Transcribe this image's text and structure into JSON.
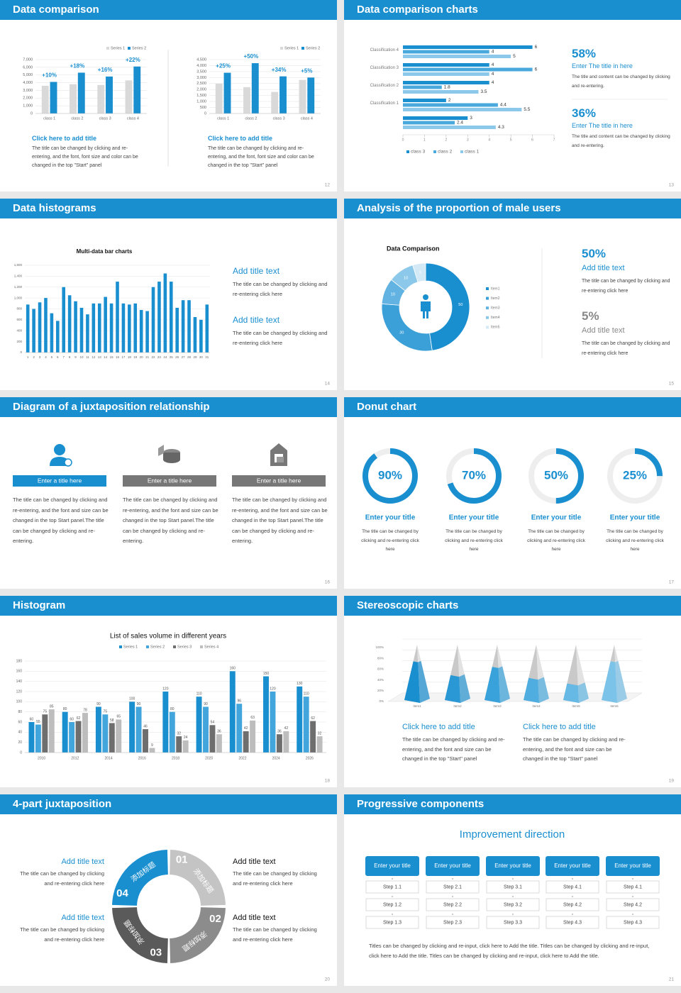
{
  "slides": [
    {
      "title": "Data comparison",
      "page": 12,
      "charts": [
        {
          "type": "bar",
          "categories": [
            "class 1",
            "class 2",
            "class 3",
            "class 4"
          ],
          "series": [
            {
              "name": "Series 1",
              "color": "#d9d9d9",
              "values": [
                3600,
                3800,
                3700,
                4300
              ]
            },
            {
              "name": "Series 2",
              "color": "#1a8fd0",
              "values": [
                4100,
                5300,
                4800,
                6100
              ]
            }
          ],
          "ylim": [
            0,
            7000
          ],
          "yticks": [
            0,
            {
              "value": 1000,
              "label": "1,000"
            },
            {
              "value": 2000,
              "label": "2,000"
            },
            {
              "value": 3000,
              "label": "3,000"
            },
            {
              "value": 4000,
              "label": "4,000"
            },
            {
              "value": 5000,
              "label": "5,000"
            },
            {
              "value": 6000,
              "label": "6,000"
            },
            {
              "value": 7000,
              "label": "7,000"
            }
          ],
          "annotations": [
            "+10%",
            "+18%",
            "+16%",
            "+22%"
          ]
        },
        {
          "type": "bar",
          "categories": [
            "class 1",
            "class 2",
            "class 3",
            "class 4"
          ],
          "series": [
            {
              "name": "Series 1",
              "color": "#d9d9d9",
              "values": [
                2500,
                2200,
                1800,
                2800
              ]
            },
            {
              "name": "Series 2",
              "color": "#1a8fd0",
              "values": [
                3400,
                4200,
                3100,
                3000
              ]
            }
          ],
          "ylim": [
            0,
            4500
          ],
          "yticks": [
            0,
            500,
            {
              "value": 1000,
              "label": "1,000"
            },
            {
              "value": 1500,
              "label": "1,500"
            },
            {
              "value": 2000,
              "label": "2,000"
            },
            {
              "value": 2500,
              "label": "2,500"
            },
            {
              "value": 3000,
              "label": "3,000"
            },
            {
              "value": 3500,
              "label": "3,500"
            },
            {
              "value": 4000,
              "label": "4,000"
            },
            {
              "value": 4500,
              "label": "4,500"
            }
          ],
          "annotations": [
            "+25%",
            "+50%",
            "+34%",
            "+5%"
          ]
        }
      ],
      "captions": [
        {
          "heading": "Click here to add title",
          "text": "The title can be changed by clicking and re-entering, and the font, font size and color can be changed in the top \"Start\" panel"
        },
        {
          "heading": "Click here to add title",
          "text": "The title can be changed by clicking and re-entering, and the font, font size and color can be changed in the top \"Start\" panel"
        }
      ]
    },
    {
      "title": "Data comparison charts",
      "page": 13,
      "chart": {
        "type": "hbar",
        "categories": [
          "Classification 4",
          "Classification 3",
          "Classification 2",
          "Classification 1",
          null
        ],
        "series": [
          {
            "name": "class 3",
            "color": "#1a8fd0",
            "values": [
              6,
              4,
              4,
              2,
              3
            ]
          },
          {
            "name": "class 2",
            "color": "#4aa9dc",
            "values": [
              4,
              6,
              1.8,
              4.4,
              2.4
            ]
          },
          {
            "name": "class 1",
            "color": "#8cc8ea",
            "values": [
              5,
              4,
              3.5,
              5.5,
              4.3
            ]
          }
        ],
        "xlim": [
          0,
          7
        ],
        "xticks": [
          0,
          1,
          2,
          3,
          4,
          5,
          6,
          7
        ]
      },
      "stats": [
        {
          "value": "58%",
          "heading": "Enter The title in here",
          "text": "The title and content can be changed by clicking and re-entering."
        },
        {
          "value": "36%",
          "heading": "Enter The title in here",
          "text": "The title and content can be changed by clicking and re-entering."
        }
      ]
    },
    {
      "title": "Data histograms",
      "page": 14,
      "chart": {
        "type": "bar",
        "title": "Multi-data bar charts",
        "color": "#1a8fd0",
        "categories": [
          1,
          2,
          3,
          4,
          5,
          6,
          7,
          8,
          9,
          10,
          11,
          12,
          13,
          14,
          15,
          16,
          17,
          18,
          19,
          20,
          21,
          22,
          23,
          24,
          25,
          26,
          27,
          28,
          29,
          30,
          31
        ],
        "values": [
          880,
          800,
          920,
          1000,
          720,
          580,
          1200,
          1050,
          940,
          820,
          700,
          900,
          900,
          1020,
          900,
          1300,
          900,
          880,
          900,
          780,
          760,
          1200,
          1300,
          1450,
          1300,
          820,
          960,
          960,
          650,
          600,
          880
        ],
        "ylim": [
          0,
          1600
        ],
        "yticks": [
          0,
          200,
          400,
          600,
          800,
          {
            "value": 1000,
            "label": "1,000"
          },
          {
            "value": 1200,
            "label": "1,200"
          },
          {
            "value": 1400,
            "label": "1,400"
          },
          {
            "value": 1600,
            "label": "1,600"
          }
        ]
      },
      "items": [
        {
          "heading": "Add title text",
          "text": "The title can be changed by clicking and re-entering click here"
        },
        {
          "heading": "Add title text",
          "text": "The title can be changed by clicking and re-entering click here"
        }
      ]
    },
    {
      "title": "Analysis of the proportion of male users",
      "page": 15,
      "chart": {
        "type": "donut",
        "title": "Data Comparison",
        "categories": [
          "Item1",
          "Item2",
          "Item3",
          "Item4",
          "Item5"
        ],
        "values": [
          50,
          30,
          10,
          10,
          5
        ],
        "colors": [
          "#1a8fd0",
          "#3b9fd8",
          "#62b3e1",
          "#8cc8ea",
          "#d3e9f6"
        ]
      },
      "stats": [
        {
          "value": "50%",
          "heading": "Add title text",
          "text": "The title can be changed by clicking and re-entering click here"
        },
        {
          "value": "5%",
          "heading": "Add title text",
          "text": "The title can be changed by clicking and re-entering click here"
        }
      ]
    },
    {
      "title": "Diagram of a juxtaposition relationship",
      "page": 16,
      "columns": [
        {
          "heading": "Enter a title here",
          "text": "The title can be changed by clicking and re-entering, and the font and size can be changed in the top Start panel.The title can be changed by clicking and re-entering."
        },
        {
          "heading": "Enter a title here",
          "text": "The title can be changed by clicking and re-entering, and the font and size can be changed in the top Start panel.The title can be changed by clicking and re-entering."
        },
        {
          "heading": "Enter a title here",
          "text": "The title can be changed by clicking and re-entering, and the font and size can be changed in the top Start panel.The title can be changed by clicking and re-entering."
        }
      ]
    },
    {
      "title": "Donut chart",
      "page": 17,
      "chart": {
        "type": "ring",
        "values": [
          90,
          70,
          50,
          25
        ],
        "value_labels": [
          "90%",
          "70%",
          "50%",
          "25%"
        ],
        "color": "#1a8fd0",
        "track_color": "#eeeeee"
      },
      "items": [
        {
          "heading": "Enter your title",
          "text": "The title can be changed by clicking and re-entering click here"
        },
        {
          "heading": "Enter your title",
          "text": "The title can be changed by clicking and re-entering click here"
        },
        {
          "heading": "Enter your title",
          "text": "The title can be changed by clicking and re-entering click here"
        },
        {
          "heading": "Enter your title",
          "text": "The title can be changed by clicking and re-entering click here"
        }
      ]
    },
    {
      "title": "Histogram",
      "page": 18,
      "chart": {
        "type": "bar",
        "title": "List of sales volume in different years",
        "categories": [
          2010,
          2012,
          2014,
          2016,
          2018,
          2020,
          2022,
          2024,
          2026
        ],
        "series": [
          {
            "name": "Series 1",
            "color": "#1a8fd0",
            "values": [
              60,
              80,
              90,
              100,
              120,
              110,
              160,
              150,
              130
            ]
          },
          {
            "name": "Series 2",
            "color": "#42a6dc",
            "values": [
              55,
              60,
              75,
              90,
              80,
              90,
              96,
              120,
              110
            ]
          },
          {
            "name": "Series 3",
            "color": "#6e6e6e",
            "values": [
              75,
              62,
              58,
              46,
              32,
              54,
              42,
              36,
              62
            ]
          },
          {
            "name": "Series 4",
            "color": "#bdbdbd",
            "values": [
              85,
              78,
              65,
              9,
              24,
              36,
              63,
              42,
              32
            ]
          }
        ],
        "ylim": [
          0,
          180
        ],
        "yticks": [
          0,
          20,
          40,
          60,
          80,
          100,
          120,
          140,
          160,
          180
        ]
      }
    },
    {
      "title": "Stereoscopic charts",
      "page": 19,
      "chart": {
        "type": "pyramid",
        "categories": [
          "Item1",
          "Item2",
          "Item3",
          "Item4",
          "Item5",
          "Item6"
        ],
        "values": [
          70,
          45,
          60,
          40,
          30,
          70
        ],
        "colors": [
          "#1a8fd0",
          "#2a98d4",
          "#3aa2da",
          "#4fade0",
          "#66b9e5",
          "#7cc3ea"
        ],
        "ylim": [
          0,
          100
        ],
        "yticks": [
          {
            "value": 0,
            "label": "0%"
          },
          {
            "value": 20,
            "label": "20%"
          },
          {
            "value": 40,
            "label": "40%"
          },
          {
            "value": 60,
            "label": "60%"
          },
          {
            "value": 80,
            "label": "80%"
          },
          {
            "value": 100,
            "label": "100%"
          }
        ]
      },
      "captions": [
        {
          "heading": "Click here to add title",
          "text": "The title can be changed by clicking and re-entering, and the font and size can be changed in the top \"Start\" panel"
        },
        {
          "heading": "Click here to add title",
          "text": "The title can be changed by clicking and re-entering, and the font and size can be changed in the top \"Start\" panel"
        }
      ]
    },
    {
      "title": "4-part juxtaposition",
      "page": 20,
      "parts": [
        {
          "number": "01",
          "label": "添加标题"
        },
        {
          "number": "02",
          "label": "添加标题"
        },
        {
          "number": "03",
          "label": "添加标题"
        },
        {
          "number": "04",
          "label": "添加标题"
        }
      ],
      "items": [
        {
          "heading": "Add title text",
          "text": "The title can be changed by clicking and re-entering click here"
        },
        {
          "heading": "Add title text",
          "text": "The title can be changed by clicking and re-entering click here"
        },
        {
          "heading": "Add title text",
          "text": "The title can be changed by clicking and re-entering click here"
        },
        {
          "heading": "Add title text",
          "text": "The title can be changed by clicking and re-entering click here"
        }
      ]
    },
    {
      "title": "Progressive components",
      "page": 21,
      "heading": "Improvement direction",
      "columns": [
        {
          "title": "Enter your title",
          "steps": [
            "Step 1.1",
            "Step 1.2",
            "Step 1.3"
          ]
        },
        {
          "title": "Enter your title",
          "steps": [
            "Step 2.1",
            "Step 2.2",
            "Step 2.3"
          ]
        },
        {
          "title": "Enter your title",
          "steps": [
            "Step 3.1",
            "Step 3.2",
            "Step 3.3"
          ]
        },
        {
          "title": "Enter your title",
          "steps": [
            "Step 4.1",
            "Step 4.2",
            "Step 4.3"
          ]
        },
        {
          "title": "Enter your title",
          "steps": [
            "Step 4.1",
            "Step 4.2",
            "Step 4.3"
          ]
        }
      ],
      "note": "Titles can be changed by clicking and re-input, click here to Add the title. Titles can be changed by clicking and re-input, click here to Add the title. Titles can be changed by clicking and re-input, click here to Add the title."
    }
  ]
}
